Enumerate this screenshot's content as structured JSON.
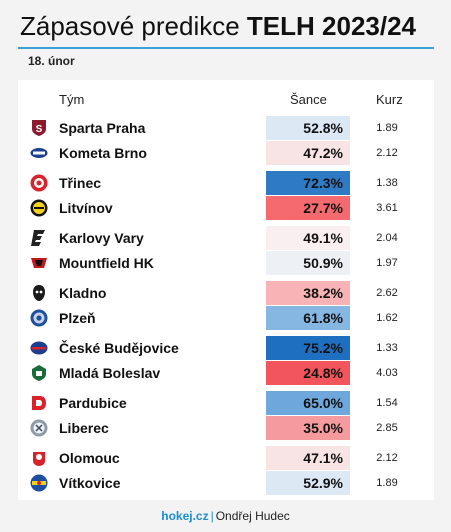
{
  "title": {
    "main": "Zápasové predikce",
    "bold": "TELH 2023/24"
  },
  "date": "18. únor",
  "headers": {
    "team": "Tým",
    "chance": "Šance",
    "odds": "Kurz"
  },
  "matches": [
    {
      "home": {
        "team": "Sparta Praha",
        "logo": "sparta-logo",
        "chance": "52.8%",
        "odds": "1.89",
        "bg": "#dce8f4",
        "fg": "#111111"
      },
      "away": {
        "team": "Kometa Brno",
        "logo": "kometa-logo",
        "chance": "47.2%",
        "odds": "2.12",
        "bg": "#f8e3e5",
        "fg": "#111111"
      }
    },
    {
      "home": {
        "team": "Třinec",
        "logo": "trinec-logo",
        "chance": "72.3%",
        "odds": "1.38",
        "bg": "#2f7ac4",
        "fg": "#111111"
      },
      "away": {
        "team": "Litvínov",
        "logo": "litvinov-logo",
        "chance": "27.7%",
        "odds": "3.61",
        "bg": "#f46a6f",
        "fg": "#111111"
      }
    },
    {
      "home": {
        "team": "Karlovy Vary",
        "logo": "karlovy-vary-logo",
        "chance": "49.1%",
        "odds": "2.04",
        "bg": "#f9eef0",
        "fg": "#111111"
      },
      "away": {
        "team": "Mountfield HK",
        "logo": "mountfield-logo",
        "chance": "50.9%",
        "odds": "1.97",
        "bg": "#edf1f6",
        "fg": "#111111"
      }
    },
    {
      "home": {
        "team": "Kladno",
        "logo": "kladno-logo",
        "chance": "38.2%",
        "odds": "2.62",
        "bg": "#f7b3b5",
        "fg": "#111111"
      },
      "away": {
        "team": "Plzeň",
        "logo": "plzen-logo",
        "chance": "61.8%",
        "odds": "1.62",
        "bg": "#86b7e2",
        "fg": "#111111"
      }
    },
    {
      "home": {
        "team": "České Budějovice",
        "logo": "ceske-budejovice-logo",
        "chance": "75.2%",
        "odds": "1.33",
        "bg": "#1f6fc0",
        "fg": "#111111"
      },
      "away": {
        "team": "Mladá Boleslav",
        "logo": "mlada-boleslav-logo",
        "chance": "24.8%",
        "odds": "4.03",
        "bg": "#f2565c",
        "fg": "#111111"
      }
    },
    {
      "home": {
        "team": "Pardubice",
        "logo": "pardubice-logo",
        "chance": "65.0%",
        "odds": "1.54",
        "bg": "#6ea7dc",
        "fg": "#111111"
      },
      "away": {
        "team": "Liberec",
        "logo": "liberec-logo",
        "chance": "35.0%",
        "odds": "2.85",
        "bg": "#f59a9d",
        "fg": "#111111"
      }
    },
    {
      "home": {
        "team": "Olomouc",
        "logo": "olomouc-logo",
        "chance": "47.1%",
        "odds": "2.12",
        "bg": "#f8e3e5",
        "fg": "#111111"
      },
      "away": {
        "team": "Vítkovice",
        "logo": "vitkovice-logo",
        "chance": "52.9%",
        "odds": "1.89",
        "bg": "#dce8f4",
        "fg": "#111111"
      }
    }
  ],
  "footer": {
    "brand": "hokej.cz",
    "separator": "|",
    "author": "Ondřej Hudec"
  }
}
